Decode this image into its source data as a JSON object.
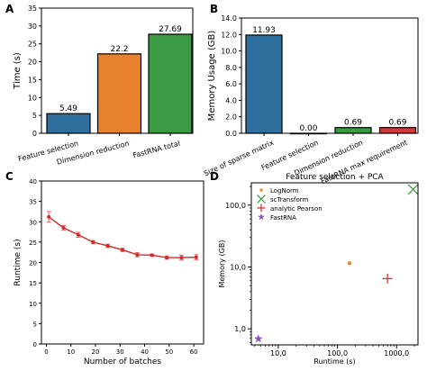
{
  "chart_data": [
    {
      "panel": "A",
      "type": "bar",
      "ylabel": "Time (s)",
      "categories": [
        "Feature selection",
        "Dimension reduction",
        "FastRNA total"
      ],
      "values": [
        5.49,
        22.2,
        27.69
      ],
      "value_labels": [
        "5.49",
        "22.2",
        "27.69"
      ],
      "colors": [
        "#2e6f9e",
        "#e8812b",
        "#3a9a41"
      ],
      "ylim": [
        0,
        35
      ],
      "yticks": [
        0,
        5,
        10,
        15,
        20,
        25,
        30,
        35
      ],
      "grid": false
    },
    {
      "panel": "B",
      "type": "bar",
      "ylabel": "Memory Usage (GB)",
      "categories": [
        "Size of sparse matrix",
        "Feature selection",
        "Dimension reduction",
        "FastRNA max requirement"
      ],
      "values": [
        11.93,
        0.0,
        0.69,
        0.69
      ],
      "value_labels": [
        "11.93",
        "0.00",
        "0.69",
        "0.69"
      ],
      "colors": [
        "#2e6f9e",
        "#e8812b",
        "#3a9a41",
        "#cf3a3a"
      ],
      "ylim": [
        0,
        14
      ],
      "yticks": [
        0.0,
        2.0,
        4.0,
        6.0,
        8.0,
        10.0,
        12.0,
        14.0
      ],
      "ytick_labels": [
        "0.0",
        "2.0",
        "4.0",
        "6.0",
        "8.0",
        "10.0",
        "12.0",
        "14.0"
      ],
      "grid": false
    },
    {
      "panel": "C",
      "type": "line",
      "xlabel": "Number of batches",
      "ylabel": "Runtime (s)",
      "x": [
        1,
        7,
        13,
        19,
        25,
        31,
        37,
        43,
        49,
        55,
        61
      ],
      "y": [
        31.2,
        28.5,
        26.8,
        25.0,
        24.1,
        23.1,
        21.9,
        21.8,
        21.2,
        21.2,
        21.3
      ],
      "yerr": [
        1.3,
        0.6,
        0.6,
        0.4,
        0.4,
        0.4,
        0.5,
        0.3,
        0.4,
        0.6,
        0.6
      ],
      "color": "#d42b2b",
      "xlim": [
        -2,
        64
      ],
      "ylim": [
        0,
        40
      ],
      "xticks": [
        0,
        10,
        20,
        30,
        40,
        50,
        60
      ],
      "yticks": [
        0,
        5,
        10,
        15,
        20,
        25,
        30,
        35,
        40
      ],
      "grid": false
    },
    {
      "panel": "D",
      "type": "scatter",
      "title": "Feature selection + PCA",
      "xlabel": "Runtime (s)",
      "ylabel": "Memory (GB)",
      "xscale": "log",
      "yscale": "log",
      "xlim": [
        3.5,
        2300
      ],
      "ylim": [
        0.55,
        230
      ],
      "xticks": [
        10,
        100,
        1000
      ],
      "xtick_labels": [
        "10,0",
        "100,0",
        "1000,0"
      ],
      "yticks": [
        1,
        10,
        100
      ],
      "ytick_labels": [
        "1,0",
        "10,0",
        "100,0"
      ],
      "legend_position": "top-left",
      "series": [
        {
          "name": "LogNorm",
          "marker": "circle",
          "color": "#f08a24",
          "x": [
            160
          ],
          "y": [
            11.5
          ]
        },
        {
          "name": "scTransform",
          "marker": "x",
          "color": "#3a9a41",
          "x": [
            1900
          ],
          "y": [
            180
          ]
        },
        {
          "name": "analytic Pearson",
          "marker": "plus",
          "color": "#d42b2b",
          "x": [
            700
          ],
          "y": [
            6.5
          ]
        },
        {
          "name": "FastRNA",
          "marker": "star",
          "color": "#8a56c6",
          "x": [
            4.6
          ],
          "y": [
            0.69
          ]
        }
      ]
    }
  ],
  "panel_labels": [
    "A",
    "B",
    "C",
    "D"
  ]
}
